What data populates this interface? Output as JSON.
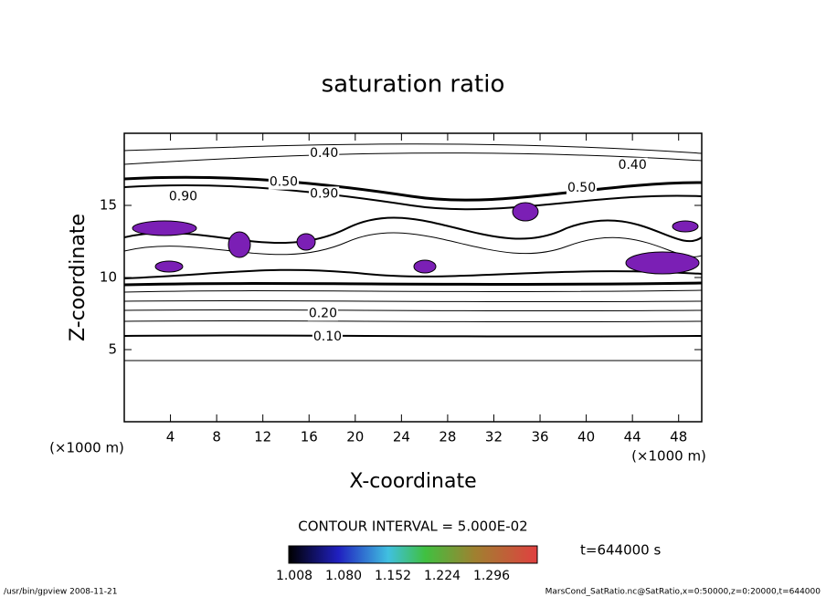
{
  "chart_data": {
    "type": "contour",
    "title": "saturation ratio",
    "x_label": "X-coordinate",
    "y_label": "Z-coordinate",
    "x_unit": "(×1000 m)",
    "y_unit": "(×1000 m)",
    "xlim": [
      0,
      50
    ],
    "ylim": [
      0,
      20
    ],
    "xticks": [
      4,
      8,
      12,
      16,
      20,
      24,
      28,
      32,
      36,
      40,
      44,
      48
    ],
    "yticks": [
      5,
      10,
      15
    ],
    "contour_labels": [
      {
        "value": 0.4,
        "label": "0.40",
        "x": 17.3,
        "z": 18.6
      },
      {
        "value": 0.4,
        "label": "0.40",
        "x": 44,
        "z": 17.8
      },
      {
        "value": 0.5,
        "label": "0.50",
        "x": 13.8,
        "z": 16.6
      },
      {
        "value": 0.5,
        "label": "0.50",
        "x": 39.6,
        "z": 16.2
      },
      {
        "value": 0.9,
        "label": "0.90",
        "x": 5.1,
        "z": 15.6
      },
      {
        "value": 0.9,
        "label": "0.90",
        "x": 17.3,
        "z": 15.8
      },
      {
        "value": 0.2,
        "label": "0.20",
        "x": 17.2,
        "z": 7.5
      },
      {
        "value": 0.1,
        "label": "0.10",
        "x": 17.6,
        "z": 5.9
      }
    ],
    "contour_interval": "CONTOUR INTERVAL = 5.000E-02",
    "time_label": "t=644000 s",
    "colorbar_ticks": [
      {
        "value": 1.008,
        "label": "1.008"
      },
      {
        "value": 1.08,
        "label": "1.080"
      },
      {
        "value": 1.152,
        "label": "1.152"
      },
      {
        "value": 1.224,
        "label": "1.224"
      },
      {
        "value": 1.296,
        "label": "1.296"
      }
    ],
    "footer_left": "/usr/bin/gpview   2008-11-21",
    "footer_right": "MarsCond_SatRatio.nc@SatRatio,x=0:50000,z=0:20000,t=644000"
  }
}
